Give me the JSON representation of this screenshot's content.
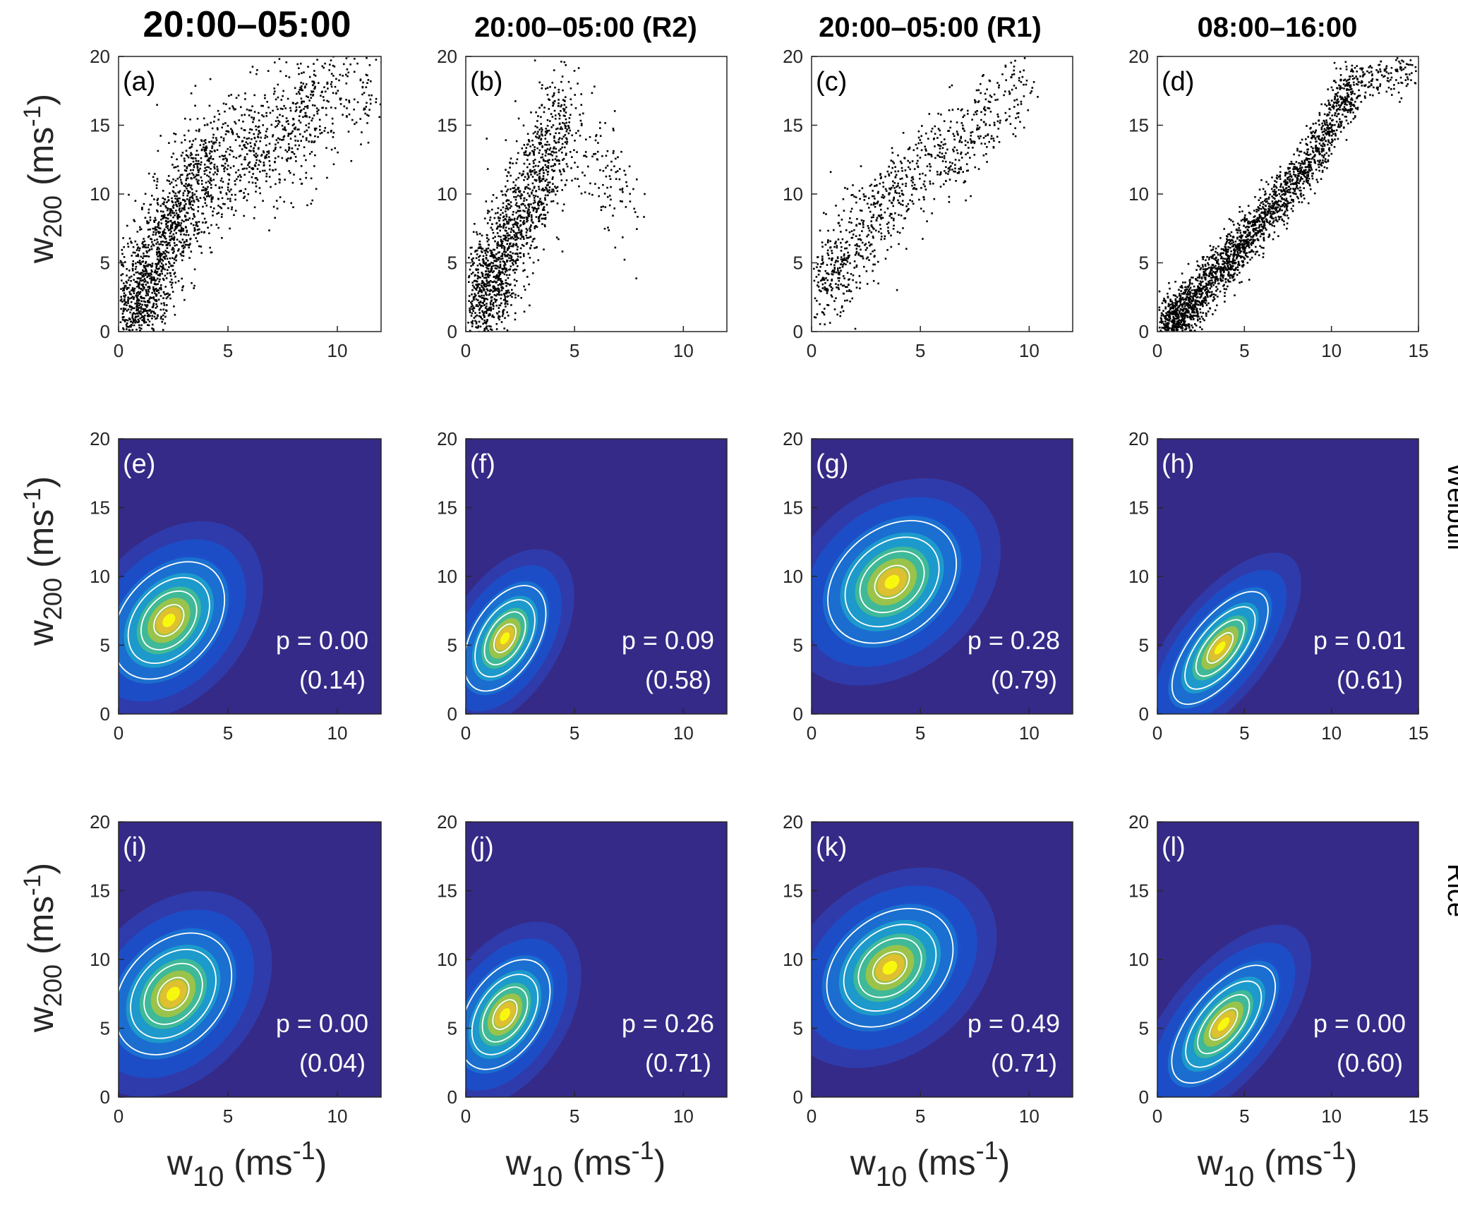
{
  "columns": [
    {
      "title": "20:00–05:00"
    },
    {
      "title": "20:00–05:00 (R2)"
    },
    {
      "title": "20:00–05:00 (R1)"
    },
    {
      "title": "08:00–16:00"
    }
  ],
  "rows": [
    {
      "kind": "scatter",
      "label": ""
    },
    {
      "kind": "density",
      "label": "Weibull"
    },
    {
      "kind": "density",
      "label": "Rice"
    }
  ],
  "axes": {
    "ylabel_main": "w",
    "ylabel_sub": "200",
    "ylabel_unit": "(ms",
    "ylabel_exp": "-1",
    "ylabel_close": ")",
    "xlabel_main": "w",
    "xlabel_sub": "10",
    "xlabel_unit": "(ms",
    "xlabel_exp": "-1",
    "xlabel_close": ")",
    "yticks": [
      0,
      5,
      10,
      15,
      20
    ]
  },
  "colors": {
    "background": "#352a87",
    "scatter_point": "#000000",
    "contour": "#ffffff",
    "peak": "#f9fb0e",
    "mid": "#1fa8c9",
    "low": "#0f5cdd"
  },
  "chart_data": [
    {
      "type": "scatter",
      "panel": "(a)",
      "column": "20:00–05:00",
      "xlim": [
        0,
        12
      ],
      "ylim": [
        0,
        20
      ],
      "xticks": [
        0,
        5,
        10
      ],
      "xlabel": "",
      "ylabel": "w200 (ms -1)",
      "description_points": [
        [
          0.5,
          1.0
        ],
        [
          1.0,
          3.0
        ],
        [
          1.5,
          4.5
        ],
        [
          2.0,
          6.0
        ],
        [
          2.5,
          8.0
        ],
        [
          3.0,
          9.5
        ],
        [
          3.5,
          10.5
        ],
        [
          4.0,
          12.0
        ],
        [
          5.0,
          12.5
        ],
        [
          6.0,
          13.0
        ],
        [
          7.0,
          14.0
        ],
        [
          8.0,
          15.0
        ],
        [
          9.0,
          16.0
        ],
        [
          10.0,
          18.0
        ],
        [
          12.0,
          18.5
        ]
      ]
    },
    {
      "type": "scatter",
      "panel": "(b)",
      "column": "20:00–05:00 (R2)",
      "xlim": [
        0,
        12
      ],
      "ylim": [
        0,
        20
      ],
      "xticks": [
        0,
        5,
        10
      ],
      "description_points": [
        [
          0.5,
          1.5
        ],
        [
          1.0,
          3.5
        ],
        [
          1.5,
          5.0
        ],
        [
          2.0,
          7.0
        ],
        [
          2.5,
          8.5
        ],
        [
          3.0,
          10.0
        ],
        [
          3.5,
          12.5
        ],
        [
          4.0,
          14.0
        ],
        [
          4.5,
          15.5
        ],
        [
          7.7,
          9.0
        ]
      ]
    },
    {
      "type": "scatter",
      "panel": "(c)",
      "column": "20:00–05:00 (R1)",
      "xlim": [
        0,
        12
      ],
      "ylim": [
        0,
        20
      ],
      "xticks": [
        0,
        5,
        10
      ],
      "description_points": [
        [
          0.5,
          3.0
        ],
        [
          1.5,
          5.5
        ],
        [
          2.5,
          8.0
        ],
        [
          3.5,
          9.5
        ],
        [
          4.5,
          11.0
        ],
        [
          5.5,
          12.5
        ],
        [
          6.5,
          13.5
        ],
        [
          7.5,
          14.5
        ],
        [
          8.5,
          16.0
        ],
        [
          9.5,
          18.5
        ]
      ]
    },
    {
      "type": "scatter",
      "panel": "(d)",
      "column": "08:00–16:00",
      "xlim": [
        0,
        15
      ],
      "ylim": [
        0,
        20
      ],
      "xticks": [
        0,
        5,
        10,
        15
      ],
      "description_points": [
        [
          0.5,
          0.5
        ],
        [
          1.5,
          1.5
        ],
        [
          2.5,
          3.0
        ],
        [
          3.5,
          4.5
        ],
        [
          4.5,
          6.0
        ],
        [
          5.5,
          7.5
        ],
        [
          6.5,
          9.0
        ],
        [
          7.5,
          10.5
        ],
        [
          8.5,
          12.0
        ],
        [
          9.5,
          14.0
        ],
        [
          10.5,
          16.5
        ],
        [
          11.0,
          18.0
        ],
        [
          14.8,
          19.0
        ]
      ]
    },
    {
      "type": "heatmap",
      "panel": "(e)",
      "model": "Weibull",
      "xlim": [
        0,
        12
      ],
      "ylim": [
        0,
        20
      ],
      "xticks": [
        0,
        5,
        10
      ],
      "p": "p = 0.00",
      "p2": "(0.14)",
      "peak": [
        2.3,
        6.8
      ],
      "sx": 1.2,
      "sy": 2.7,
      "rho": 0.82
    },
    {
      "type": "heatmap",
      "panel": "(f)",
      "model": "Weibull",
      "xlim": [
        0,
        12
      ],
      "ylim": [
        0,
        20
      ],
      "xticks": [
        0,
        5,
        10
      ],
      "p": "p = 0.09",
      "p2": "(0.58)",
      "peak": [
        1.8,
        5.5
      ],
      "sx": 0.8,
      "sy": 2.6,
      "rho": 0.82
    },
    {
      "type": "heatmap",
      "panel": "(g)",
      "model": "Weibull",
      "xlim": [
        0,
        12
      ],
      "ylim": [
        0,
        20
      ],
      "xticks": [
        0,
        5,
        10
      ],
      "p": "p = 0.28",
      "p2": "(0.79)",
      "peak": [
        3.7,
        9.6
      ],
      "sx": 1.6,
      "sy": 2.5,
      "rho": 0.86
    },
    {
      "type": "heatmap",
      "panel": "(h)",
      "model": "Weibull",
      "xlim": [
        0,
        15
      ],
      "ylim": [
        0,
        20
      ],
      "xticks": [
        0,
        5,
        10,
        15
      ],
      "p": "p = 0.01",
      "p2": "(0.61)",
      "peak": [
        3.6,
        4.8
      ],
      "sx": 1.6,
      "sy": 2.7,
      "rho": 0.95
    },
    {
      "type": "heatmap",
      "panel": "(i)",
      "model": "Rice",
      "xlim": [
        0,
        12
      ],
      "ylim": [
        0,
        20
      ],
      "xticks": [
        0,
        5,
        10
      ],
      "p": "p = 0.00",
      "p2": "(0.04)",
      "peak": [
        2.5,
        7.5
      ],
      "sx": 1.2,
      "sy": 2.8,
      "rho": 0.78
    },
    {
      "type": "heatmap",
      "panel": "(j)",
      "model": "Rice",
      "xlim": [
        0,
        12
      ],
      "ylim": [
        0,
        20
      ],
      "xticks": [
        0,
        5,
        10
      ],
      "p": "p = 0.26",
      "p2": "(0.71)",
      "peak": [
        1.8,
        6.0
      ],
      "sx": 0.85,
      "sy": 2.7,
      "rho": 0.78
    },
    {
      "type": "heatmap",
      "panel": "(k)",
      "model": "Rice",
      "xlim": [
        0,
        12
      ],
      "ylim": [
        0,
        20
      ],
      "xticks": [
        0,
        5,
        10
      ],
      "p": "p = 0.49",
      "p2": "(0.71)",
      "peak": [
        3.6,
        9.4
      ],
      "sx": 1.6,
      "sy": 2.4,
      "rho": 0.86
    },
    {
      "type": "heatmap",
      "panel": "(l)",
      "model": "Rice",
      "xlim": [
        0,
        15
      ],
      "ylim": [
        0,
        20
      ],
      "xticks": [
        0,
        5,
        10,
        15
      ],
      "p": "p = 0.00",
      "p2": "(0.60)",
      "peak": [
        3.8,
        5.3
      ],
      "sx": 1.7,
      "sy": 2.8,
      "rho": 0.94
    }
  ]
}
